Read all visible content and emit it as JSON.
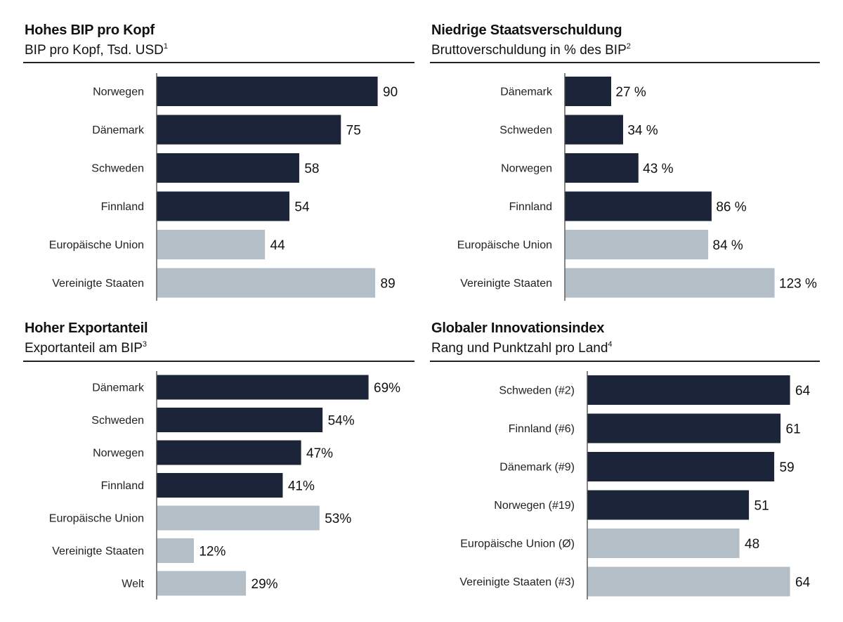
{
  "colors": {
    "primary_bar": "#1b2438",
    "secondary_bar": "#b4bec6",
    "axis": "#333333",
    "category_text": "#222222",
    "value_text": "#111111"
  },
  "chart_data": [
    {
      "type": "bar",
      "orientation": "horizontal",
      "title": "Hohes BIP pro Kopf",
      "subtitle": "BIP pro Kopf, Tsd. USD",
      "subtitle_footnote": "1",
      "categories": [
        "Norwegen",
        "Dänemark",
        "Schweden",
        "Finnland",
        "Europäische Union",
        "Vereinigte Staaten"
      ],
      "values": [
        90,
        75,
        58,
        54,
        44,
        89
      ],
      "value_labels": [
        "90",
        "75",
        "58",
        "54",
        "44",
        "89"
      ],
      "highlight": [
        true,
        true,
        true,
        true,
        false,
        false
      ],
      "xlim": [
        0,
        90
      ]
    },
    {
      "type": "bar",
      "orientation": "horizontal",
      "title": "Niedrige Staatsverschuldung",
      "subtitle": "Bruttoverschuldung in % des BIP",
      "subtitle_footnote": "2",
      "categories": [
        "Dänemark",
        "Schweden",
        "Norwegen",
        "Finnland",
        "Europäische Union",
        "Vereinigte Staaten"
      ],
      "values": [
        27,
        34,
        43,
        86,
        84,
        123
      ],
      "value_labels": [
        "27 %",
        "34 %",
        "43 %",
        "86 %",
        "84 %",
        "123 %"
      ],
      "highlight": [
        true,
        true,
        true,
        true,
        false,
        false
      ],
      "xlim": [
        0,
        123
      ]
    },
    {
      "type": "bar",
      "orientation": "horizontal",
      "title": "Hoher Exportanteil",
      "subtitle": "Exportanteil am BIP",
      "subtitle_footnote": "3",
      "categories": [
        "Dänemark",
        "Schweden",
        "Norwegen",
        "Finnland",
        "Europäische Union",
        "Vereinigte Staaten",
        "Welt"
      ],
      "values": [
        69,
        54,
        47,
        41,
        53,
        12,
        29
      ],
      "value_labels": [
        "69%",
        "54%",
        "47%",
        "41%",
        "53%",
        "12%",
        "29%"
      ],
      "highlight": [
        true,
        true,
        true,
        true,
        false,
        false,
        false
      ],
      "xlim": [
        0,
        69
      ]
    },
    {
      "type": "bar",
      "orientation": "horizontal",
      "title": "Globaler Innovationsindex",
      "subtitle": "Rang und Punktzahl pro Land",
      "subtitle_footnote": "4",
      "categories": [
        "Schweden (#2)",
        "Finnland (#6)",
        "Dänemark (#9)",
        "Norwegen (#19)",
        "Europäische Union (Ø)",
        "Vereinigte Staaten (#3)"
      ],
      "values": [
        64,
        61,
        59,
        51,
        48,
        64
      ],
      "value_labels": [
        "64",
        "61",
        "59",
        "51",
        "48",
        "64"
      ],
      "highlight": [
        true,
        true,
        true,
        true,
        false,
        false
      ],
      "xlim": [
        0,
        64
      ]
    }
  ]
}
